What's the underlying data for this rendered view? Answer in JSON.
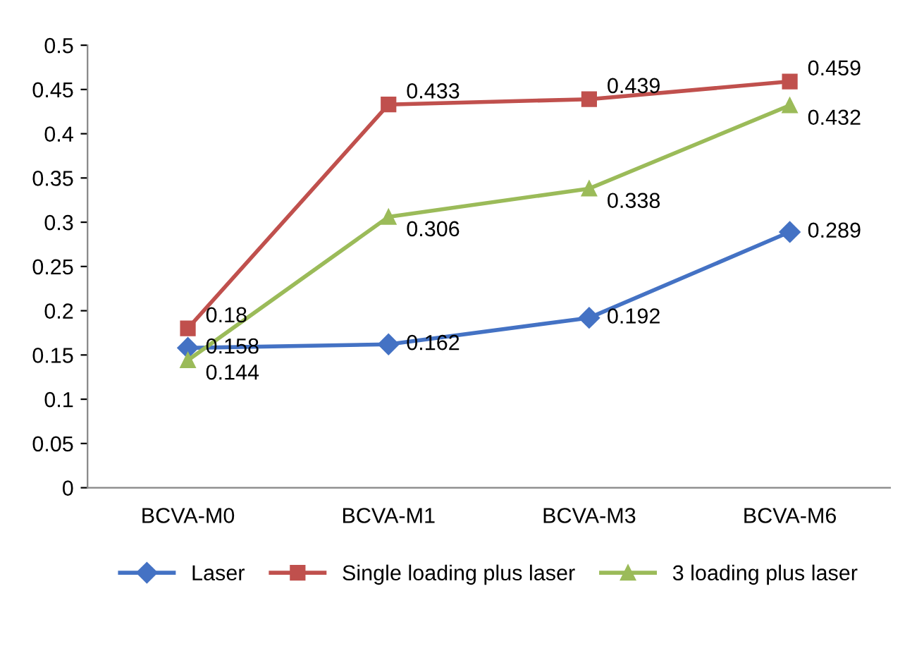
{
  "chart_data": {
    "type": "line",
    "categories": [
      "BCVA-M0",
      "BCVA-M1",
      "BCVA-M3",
      "BCVA-M6"
    ],
    "series": [
      {
        "name": "Laser",
        "color": "#4472c4",
        "marker": "diamond",
        "values": [
          0.158,
          0.162,
          0.192,
          0.289
        ]
      },
      {
        "name": "Single loading plus laser",
        "color": "#c0504d",
        "marker": "square",
        "values": [
          0.18,
          0.433,
          0.439,
          0.459
        ]
      },
      {
        "name": "3 loading plus laser",
        "color": "#9bbb59",
        "marker": "triangle",
        "values": [
          0.144,
          0.306,
          0.338,
          0.432
        ]
      }
    ],
    "ylim": [
      0,
      0.5
    ],
    "yticks": [
      0,
      0.05,
      0.1,
      0.15,
      0.2,
      0.25,
      0.3,
      0.35,
      0.4,
      0.45,
      0.5
    ],
    "data_labels": true,
    "grid": false,
    "legend": "bottom",
    "line_style": "solid"
  }
}
